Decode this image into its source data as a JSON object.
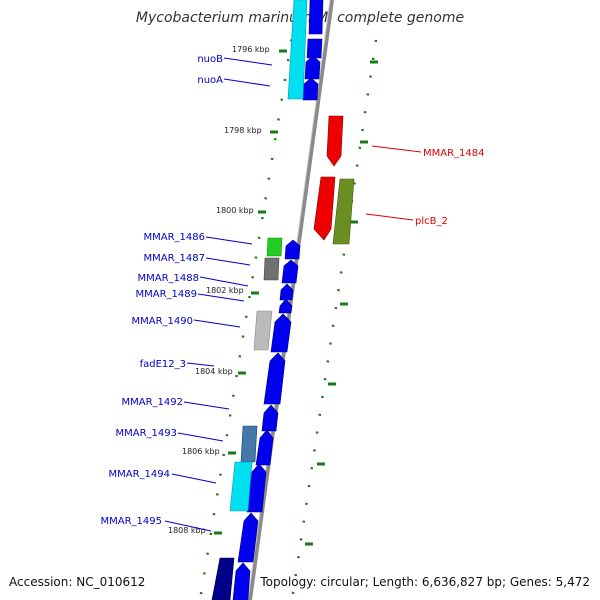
{
  "title": "Mycobacterium marinum M, complete genome",
  "footer": {
    "accession": "Accession: NC_010612",
    "topology": "Topology: circular; Length: 6,636,827 bp; Genes: 5,472"
  },
  "colors": {
    "backbone": "#8a8a8a",
    "forward_gene": "#0000ee",
    "reverse_gene": "#ee0000",
    "tick": "#1a7a1a",
    "label_forward": "#0000cc",
    "label_reverse": "#dd0000"
  },
  "kbp_labels": [
    "1796 kbp",
    "1798 kbp",
    "1800 kbp",
    "1802 kbp",
    "1804 kbp",
    "1806 kbp",
    "1808 kbp"
  ],
  "forward_labels": [
    "nuoB",
    "nuoA",
    "MMAR_1486",
    "MMAR_1487",
    "MMAR_1488",
    "MMAR_1489",
    "MMAR_1490",
    "fadE12_3",
    "MMAR_1492",
    "MMAR_1493",
    "MMAR_1494",
    "MMAR_1495"
  ],
  "reverse_labels": [
    "MMAR_1484",
    "plcB_2"
  ]
}
